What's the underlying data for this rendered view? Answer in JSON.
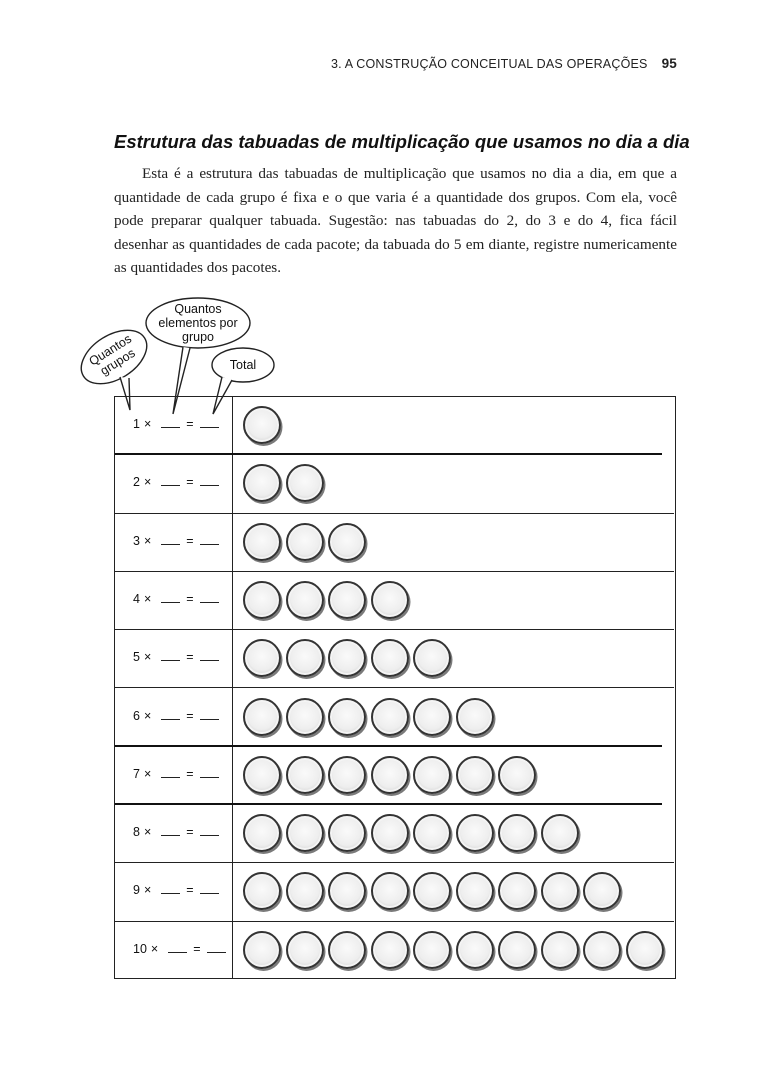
{
  "header": {
    "running_title": "3. A CONSTRUÇÃO CONCEITUAL DAS OPERAÇÕES",
    "page_number": "95"
  },
  "section": {
    "title": "Estrutura das tabuadas de multiplicação que usamos no dia a dia",
    "paragraph": "Esta é a estrutura das tabuadas de multiplicação que usamos no dia a dia, em que a quantidade de cada grupo é fixa e o que varia é a quantidade dos grupos. Com ela, você pode preparar qualquer tabuada. Sugestão: nas tabuadas do 2, do 3 e do 4, fica fácil desenhar as quantidades de cada pacote; da tabuada do 5 em diante, registre numericamente as quantidades dos pacotes."
  },
  "figure": {
    "bubbles": {
      "groups": "Quantos grupos",
      "per_group": "Quantos elementos por grupo",
      "total": "Total"
    },
    "operator": "×",
    "equals": "=",
    "rows": [
      {
        "n": "1",
        "circles": 1
      },
      {
        "n": "2",
        "circles": 2
      },
      {
        "n": "3",
        "circles": 3
      },
      {
        "n": "4",
        "circles": 4
      },
      {
        "n": "5",
        "circles": 5
      },
      {
        "n": "6",
        "circles": 6
      },
      {
        "n": "7",
        "circles": 7
      },
      {
        "n": "8",
        "circles": 8
      },
      {
        "n": "9",
        "circles": 9
      },
      {
        "n": "10",
        "circles": 10
      }
    ]
  }
}
